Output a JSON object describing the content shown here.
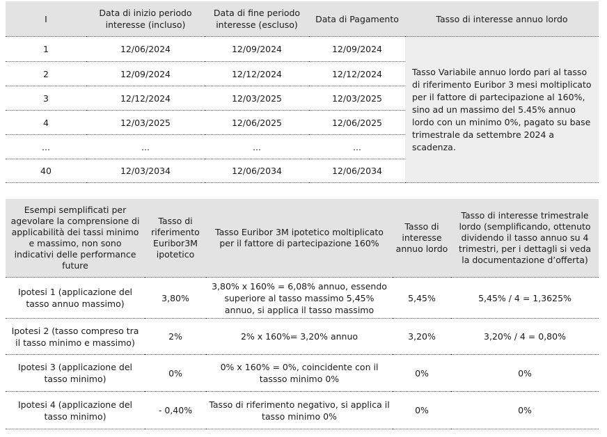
{
  "schedule": {
    "headers": [
      "I",
      "Data di inizio periodo interesse (incluso)",
      "Data di fine periodo interesse (escluso)",
      "Data di Pagamento",
      "Tasso di interesse annuo lordo"
    ],
    "rows": [
      [
        "1",
        "12/06/2024",
        "12/09/2024",
        "12/09/2024"
      ],
      [
        "2",
        "12/09/2024",
        "12/12/2024",
        "12/12/2024"
      ],
      [
        "3",
        "12/12/2024",
        "12/03/2025",
        "12/03/2025"
      ],
      [
        "4",
        "12/03/2025",
        "12/06/2025",
        "12/06/2025"
      ],
      [
        "...",
        "...",
        "...",
        "..."
      ],
      [
        "40",
        "12/03/2034",
        "12/06/2034",
        "12/06/2034"
      ]
    ],
    "rate_text": "Tasso Variabile annuo lordo pari al tasso di riferimento Euribor 3 mesi moltiplicato per il fattore di partecipazione al 160%, sino ad un massimo del 5.45% annuo lordo con un minimo 0%, pagato su base trimestrale da settembre 2024 a scadenza."
  },
  "examples": {
    "headers": [
      "Esempi semplificati per agevolare la comprensione di applicabilità dei tassi minimo e massimo, non sono indicativi delle performance future",
      "Tasso di riferimento Euribor3M ipotetico",
      "Tasso Euribor 3M ipotetico moltiplicato per il fattore di partecipazione 160%",
      "Tasso di interesse annuo lordo",
      "Tasso di interesse trimestrale lordo (semplificando, ottenuto dividendo il tasso annuo su 4 trimestri, per i dettagli si veda la documentazione d’offerta)"
    ],
    "rows": [
      [
        "Ipotesi 1 (applicazione del tasso annuo massimo)",
        "3,80%",
        "3,80% x 160% = 6,08% annuo, essendo superiore al tasso massimo 5,45% annuo, si applica il tasso massimo",
        "5,45%",
        "5,45% / 4 = 1,3625%"
      ],
      [
        "Ipotesi 2 (tasso compreso tra il tasso minimo e massimo)",
        "2%",
        "2% x 160%=  3,20% annuo",
        "3,20%",
        "3,20% / 4 = 0,80%"
      ],
      [
        "Ipotesi 3 (applicazione del tasso minimo)",
        "0%",
        "0% x 160% = 0%, coincidente con il tassso minimo 0%",
        "0%",
        "0%"
      ],
      [
        "Ipotesi 4 (applicazione del tasso minimo)",
        "- 0,40%",
        "Tasso di riferimento negativo, si applica il tasso minimo 0%",
        "0%",
        "0%"
      ]
    ]
  }
}
